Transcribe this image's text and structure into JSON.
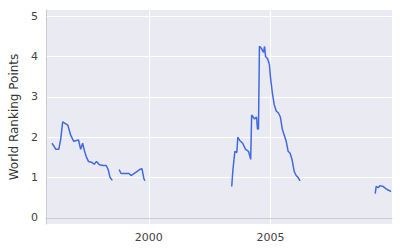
{
  "chart_data": {
    "type": "line",
    "y_label": "World Ranking Points",
    "color": "#4169e1",
    "grid": true,
    "x": [
      1996.02,
      1996.1,
      1996.18,
      1996.3,
      1996.38,
      1996.46,
      1996.54,
      1996.67,
      1996.79,
      1996.91,
      1997.03,
      1997.11,
      1997.2,
      1997.28,
      1997.36,
      1997.44,
      1997.52,
      1997.64,
      1997.76,
      1997.85,
      1997.97,
      1998.13,
      1998.25,
      1998.33,
      1998.41,
      1998.5,
      1998.64,
      1998.78,
      1998.86,
      1998.98,
      1999.19,
      1999.27,
      1999.39,
      1999.51,
      1999.63,
      1999.72,
      1999.8,
      1999.84,
      2001.6,
      2003.41,
      2003.46,
      2003.54,
      2003.62,
      2003.66,
      2003.74,
      2003.86,
      2003.98,
      2004.1,
      2004.19,
      2004.23,
      2004.35,
      2004.43,
      2004.47,
      2004.51,
      2004.55,
      2004.63,
      2004.72,
      2004.76,
      2004.8,
      2004.88,
      2004.96,
      2005.0,
      2005.08,
      2005.16,
      2005.24,
      2005.33,
      2005.41,
      2005.49,
      2005.57,
      2005.65,
      2005.73,
      2005.81,
      2005.89,
      2005.98,
      2006.06,
      2006.14,
      2006.22,
      2007.8,
      2009.31,
      2009.35,
      2009.43,
      2009.51,
      2009.63,
      2009.76,
      2009.88,
      2009.96
    ],
    "values": [
      1.85,
      1.78,
      1.7,
      1.7,
      1.95,
      2.38,
      2.35,
      2.3,
      2.05,
      1.9,
      1.92,
      1.93,
      1.7,
      1.85,
      1.65,
      1.5,
      1.4,
      1.38,
      1.33,
      1.4,
      1.32,
      1.3,
      1.3,
      1.2,
      1.0,
      0.93,
      null,
      1.2,
      1.1,
      1.1,
      1.1,
      1.05,
      1.1,
      1.15,
      1.2,
      1.22,
      0.97,
      0.92,
      null,
      0.78,
      1.2,
      1.65,
      1.62,
      2.0,
      1.92,
      1.85,
      1.7,
      1.65,
      1.45,
      2.55,
      2.45,
      2.5,
      2.2,
      2.2,
      4.25,
      4.2,
      4.1,
      4.25,
      4.0,
      3.95,
      3.8,
      3.5,
      3.1,
      2.8,
      2.65,
      2.6,
      2.5,
      2.2,
      2.05,
      1.9,
      1.65,
      1.6,
      1.45,
      1.15,
      1.05,
      1.0,
      0.92,
      null,
      0.6,
      0.78,
      0.75,
      0.8,
      0.78,
      0.72,
      0.68,
      0.65
    ],
    "xlim": [
      1995.77,
      2010.0
    ],
    "xticks": [
      2000,
      2005
    ],
    "ylim": [
      -0.15,
      5.15
    ],
    "yticks": [
      0,
      1,
      2,
      3,
      4,
      5
    ]
  }
}
